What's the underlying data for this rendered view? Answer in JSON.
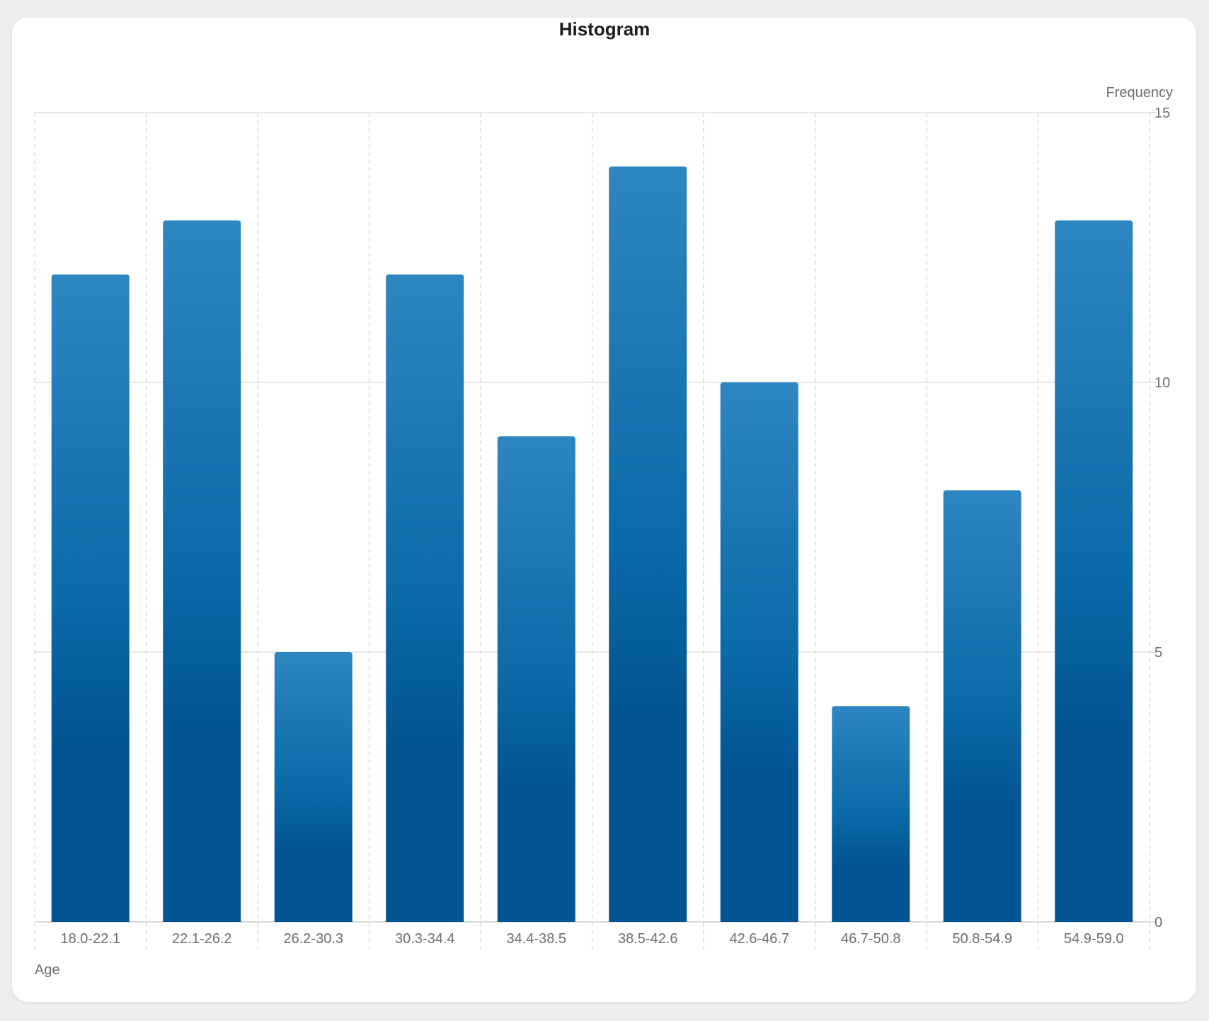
{
  "chart_data": {
    "type": "bar",
    "title": "Histogram",
    "xlabel": "Age",
    "ylabel": "Frequency",
    "categories": [
      "18.0-22.1",
      "22.1-26.2",
      "26.2-30.3",
      "30.3-34.4",
      "34.4-38.5",
      "38.5-42.6",
      "42.6-46.7",
      "46.7-50.8",
      "50.8-54.9",
      "54.9-59.0"
    ],
    "values": [
      12,
      13,
      5,
      12,
      9,
      14,
      10,
      4,
      8,
      13
    ],
    "ylim": [
      0,
      15
    ],
    "yticks": [
      0,
      5,
      10,
      15
    ],
    "yaxis_position": "right",
    "grid": true,
    "bar_color_top": "#2e86c1",
    "bar_color_mid": "#0b6aa8",
    "bar_color_bottom": "#025592"
  }
}
